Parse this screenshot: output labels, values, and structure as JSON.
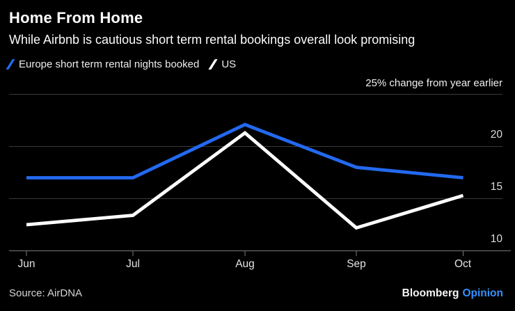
{
  "header": {
    "title": "Home From Home",
    "subtitle": "While Airbnb is cautious short term rental bookings overall look promising"
  },
  "legend": [
    {
      "label": "Europe short term rental nights booked",
      "color": "#2369f0"
    },
    {
      "label": "US",
      "color": "#ffffff"
    }
  ],
  "axis_note": "25% change from year earlier",
  "chart_data": {
    "type": "line",
    "categories": [
      "Jun",
      "Jul",
      "Aug",
      "Sep",
      "Oct"
    ],
    "series": [
      {
        "name": "Europe short term rental nights booked",
        "color": "#2369f0",
        "values": [
          17,
          17,
          22.1,
          18,
          17
        ]
      },
      {
        "name": "US",
        "color": "#ffffff",
        "values": [
          12.5,
          13.4,
          21.3,
          12.2,
          15.3
        ]
      }
    ],
    "title": "Home From Home",
    "xlabel": "",
    "ylabel": "% change from year earlier",
    "ylim": [
      10,
      25
    ],
    "yticks": [
      10,
      15,
      20,
      25
    ],
    "ytick_display": [
      "10",
      "15",
      "20"
    ],
    "grid": true,
    "legend_position": "top-left"
  },
  "footer": {
    "source": "Source: AirDNA",
    "brand": "Bloomberg",
    "brand_suffix": "Opinion"
  },
  "colors": {
    "background": "#000000",
    "europe_line": "#2369f0",
    "us_line": "#ffffff",
    "grid": "#3a3a3a",
    "axis": "#7a7a7a",
    "opinion_blue": "#3391ff"
  }
}
